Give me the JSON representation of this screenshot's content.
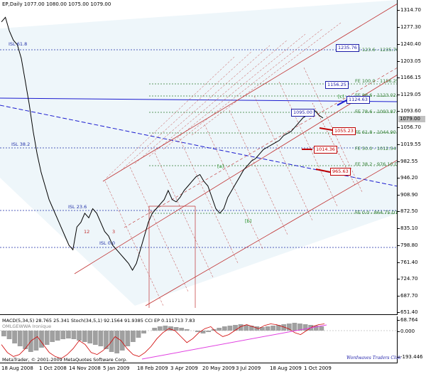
{
  "chart_title": "EP,Daily  1077.00 1080.00 1075.00 1079.00",
  "current_price": "1079.00",
  "copyright": "MetaTrader, © 2001-2009 MetaQuotes Software Corp.",
  "signature": "Wordwaves Traders Club",
  "oscillator_title": "MACD(5,34,5) 28.765 25.341  Stoch(34,5,1) 92.1564 91.9385  CCI EP 0.111713 7.83",
  "oscillator_subtitle": "OMLGEWWA Ironique",
  "price_axis": [
    "1314.70",
    "1277.30",
    "1240.40",
    "1203.05",
    "1166.15",
    "1129.05",
    "1093.60",
    "1079.00",
    "1056.70",
    "1019.55",
    "982.55",
    "946.20",
    "908.90",
    "872.50",
    "835.10",
    "798.80",
    "761.40",
    "724.70",
    "687.70",
    "651.40"
  ],
  "osc_axis": [
    "68.764",
    "0.000",
    "-193.446"
  ],
  "date_axis": [
    "18 Aug 2008",
    "1 Oct 2008",
    "14 Nov 2008",
    "5 Jan 2009",
    "18 Feb 2009",
    "3 Apr 2009",
    "20 May 2009",
    "3 Jul 2009",
    "18 Aug 2009",
    "1 Oct 2009"
  ],
  "fe_levels": [
    {
      "label": "FE 123.6 - 1235.76 D1",
      "box": "1235.76",
      "box_style": "blue"
    },
    {
      "label": "FE 100.0 - 1156.25 D1",
      "box": "1156.25",
      "box_style": "blue"
    },
    {
      "label": "FE 88.6 - 1123.02 D1",
      "box": "1124.63",
      "box_style": "blue"
    },
    {
      "label": "FE 78.6 - 1093.87 D1",
      "box": "1095.00",
      "box_style": "blue"
    },
    {
      "label": "FE 61.8 - 1044.90 D1",
      "box": "1055.23",
      "box_style": "red"
    },
    {
      "label": "FE 50.0 - 1012.54",
      "box": "1014.36",
      "box_style": "red"
    },
    {
      "label": "FE 38.2 - 976.10 D1",
      "box": "965.63",
      "box_style": "red"
    },
    {
      "label": "FE 0.0 - 864.75 D1",
      "box": "",
      "box_style": ""
    }
  ],
  "isl_levels": [
    "ISL 61.8",
    "ISL 38.2",
    "ISL 23.6",
    "ISL 0.0"
  ],
  "wave_labels": [
    "[c]",
    "[a]",
    "[b]",
    "12",
    "3"
  ],
  "chart_data": {
    "type": "line",
    "title": "EP,Daily",
    "ylim": [
      651.4,
      1314.7
    ],
    "x_ticks": [
      "18 Aug 2008",
      "1 Oct 2008",
      "14 Nov 2008",
      "5 Jan 2009",
      "18 Feb 2009",
      "3 Apr 2009",
      "20 May 2009",
      "3 Jul 2009",
      "18 Aug 2009",
      "1 Oct 2009"
    ],
    "series": [
      {
        "values": [
          1290,
          1300,
          1270,
          1250,
          1240,
          1210,
          1160,
          1110,
          1050,
          1000,
          960,
          930,
          900,
          880,
          860,
          840,
          820,
          800,
          790,
          840,
          850,
          870,
          860,
          880,
          870,
          850,
          830,
          820,
          800,
          790,
          780,
          770,
          760,
          745,
          760,
          790,
          820,
          850,
          870,
          880,
          890,
          900,
          920,
          900,
          895,
          905,
          920,
          930,
          940,
          950,
          955,
          940,
          930,
          905,
          880,
          870,
          880,
          905,
          920,
          935,
          950,
          965,
          975,
          985,
          990,
          1000,
          1010,
          1015,
          1020,
          1025,
          1030,
          1040,
          1045,
          1050,
          1060,
          1070,
          1080,
          1085,
          1090,
          1095,
          1085,
          1079
        ]
      }
    ]
  },
  "osc_data": {
    "histogram": [
      -40,
      -60,
      -90,
      -110,
      -130,
      -150,
      -140,
      -120,
      -100,
      -80,
      -70,
      -60,
      -55,
      -60,
      -70,
      -80,
      -90,
      -100,
      -110,
      -130,
      -150,
      -160,
      -140,
      -110,
      -80,
      -50,
      -20,
      0,
      20,
      30,
      35,
      30,
      25,
      20,
      10,
      0,
      -10,
      -20,
      -10,
      10,
      20,
      30,
      35,
      40,
      45,
      40,
      35,
      30,
      25,
      30,
      35,
      40,
      45,
      50,
      55,
      50,
      45,
      40,
      35,
      30
    ],
    "stoch": [
      40,
      20,
      10,
      15,
      30,
      50,
      60,
      40,
      20,
      10,
      5,
      15,
      30,
      50,
      40,
      20,
      15,
      25,
      40,
      60,
      50,
      30,
      15,
      10,
      20,
      35,
      55,
      70,
      80,
      75,
      60,
      45,
      55,
      70,
      80,
      85,
      70,
      60,
      65,
      75,
      85,
      90,
      85,
      80,
      88,
      92,
      90,
      85,
      80,
      70,
      65,
      75,
      85,
      90,
      92
    ]
  }
}
